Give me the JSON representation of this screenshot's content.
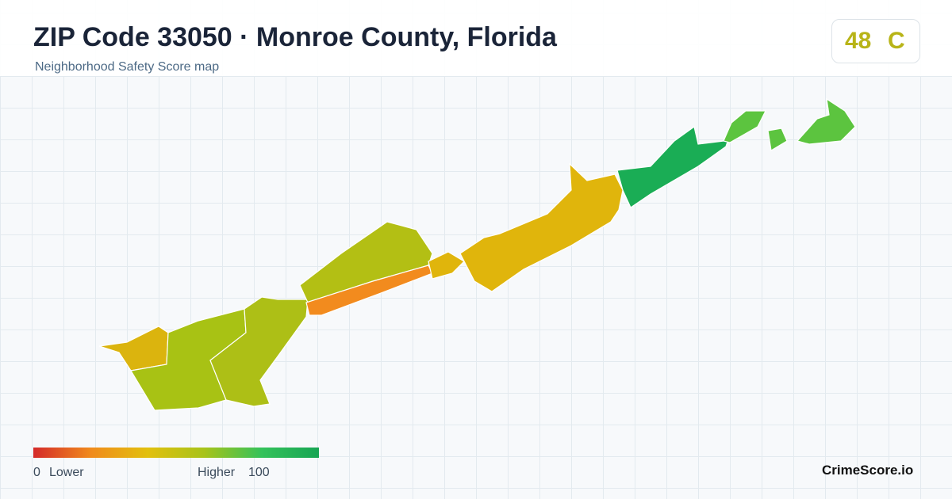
{
  "header": {
    "title": "ZIP Code 33050 · Monroe County, Florida",
    "subtitle": "Neighborhood Safety Score map"
  },
  "score": {
    "value": 48,
    "grade": "C"
  },
  "legend": {
    "min": 0,
    "min_label": "Lower",
    "max_label": "Higher",
    "max": 100
  },
  "brand": "CrimeScore.io"
}
